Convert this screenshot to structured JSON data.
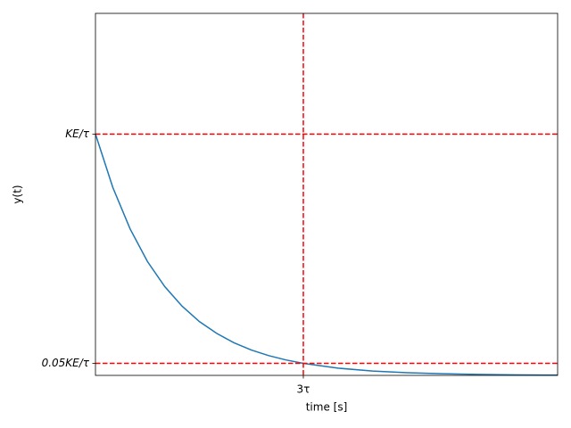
{
  "chart_data": {
    "type": "line",
    "xlabel": "time [s]",
    "ylabel": "y(t)",
    "x": [
      0,
      0.25,
      0.5,
      0.75,
      1,
      1.25,
      1.5,
      1.75,
      2,
      2.25,
      2.5,
      2.75,
      3,
      3.5,
      4,
      4.5,
      5,
      5.5,
      6,
      6.5,
      6.67
    ],
    "series": [
      {
        "color": "#1f77b4",
        "values": [
          1,
          0.779,
          0.607,
          0.472,
          0.368,
          0.287,
          0.223,
          0.174,
          0.135,
          0.105,
          0.082,
          0.064,
          0.05,
          0.03,
          0.018,
          0.011,
          0.0067,
          0.0041,
          0.0025,
          0.0015,
          0.0013
        ]
      }
    ],
    "xlim": [
      0,
      6.67
    ],
    "ylim": [
      0,
      1.5
    ],
    "xticks": [
      {
        "value": 3,
        "label": "3τ"
      }
    ],
    "yticks": [
      {
        "value": 0.05,
        "label": "0.05KE/τ"
      },
      {
        "value": 1,
        "label": "KE/τ"
      }
    ],
    "hlines": [
      1,
      0.05
    ],
    "vlines": [
      3
    ],
    "ref_color": "#ff0000"
  }
}
